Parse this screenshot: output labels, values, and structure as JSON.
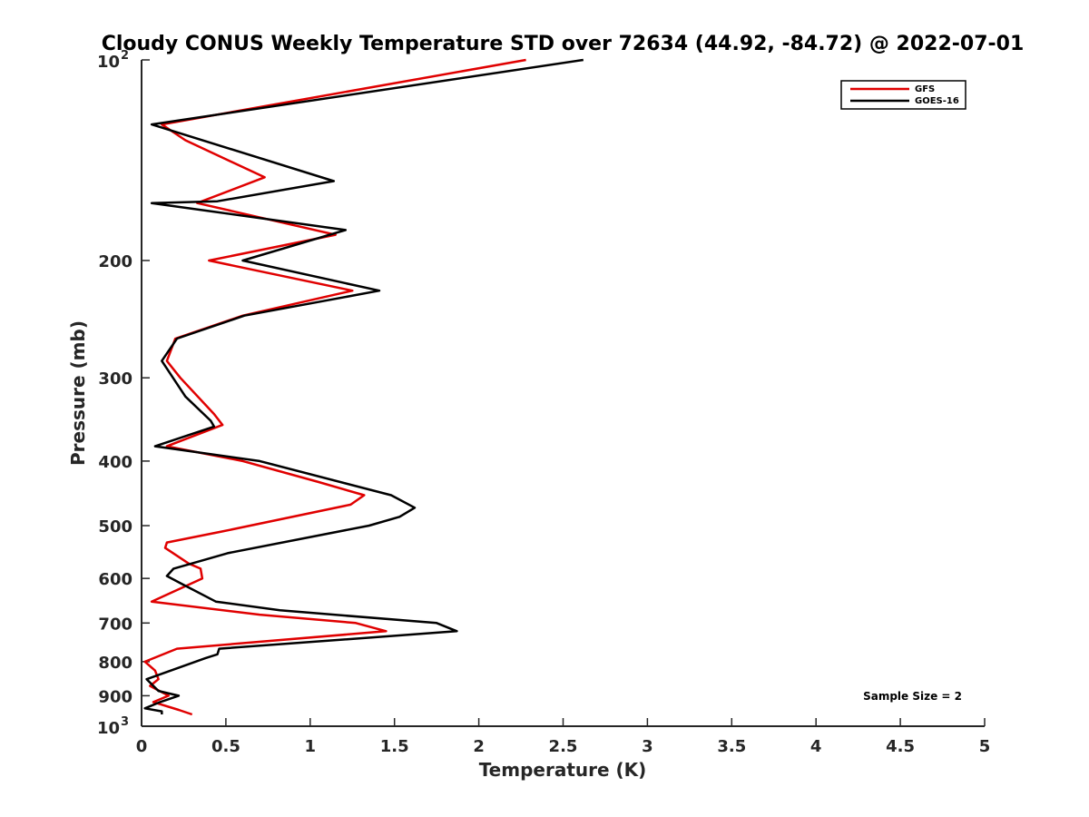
{
  "chart_data": {
    "type": "line",
    "title": "Cloudy CONUS Weekly Temperature STD over 72634 (44.92, -84.72) @ 2022-07-01",
    "xlabel": "Temperature (K)",
    "ylabel": "Pressure (mb)",
    "xlim": [
      0,
      5
    ],
    "ylim": [
      100,
      1000
    ],
    "y_scale": "log",
    "y_reversed": true,
    "grid": false,
    "legend_position": "top-right",
    "x_ticks": [
      0,
      0.5,
      1,
      1.5,
      2,
      2.5,
      3,
      3.5,
      4,
      4.5,
      5
    ],
    "x_tick_labels": [
      "0",
      "0.5",
      "1",
      "1.5",
      "2",
      "2.5",
      "3",
      "3.5",
      "4",
      "4.5",
      "5"
    ],
    "y_ticks": [
      100,
      200,
      300,
      400,
      500,
      600,
      700,
      800,
      900,
      1000
    ],
    "y_tick_labels": [
      {
        "base": "10",
        "exp": "2"
      },
      {
        "base": "200",
        "exp": ""
      },
      {
        "base": "300",
        "exp": ""
      },
      {
        "base": "400",
        "exp": ""
      },
      {
        "base": "500",
        "exp": ""
      },
      {
        "base": "600",
        "exp": ""
      },
      {
        "base": "700",
        "exp": ""
      },
      {
        "base": "800",
        "exp": ""
      },
      {
        "base": "900",
        "exp": ""
      },
      {
        "base": "10",
        "exp": "3"
      }
    ],
    "annotation": "Sample Size = 2",
    "series": [
      {
        "name": "GFS",
        "color": "#e00000",
        "points": [
          [
            2.28,
            100
          ],
          [
            0.12,
            125
          ],
          [
            0.26,
            132
          ],
          [
            0.73,
            150
          ],
          [
            0.33,
            164
          ],
          [
            1.15,
            183
          ],
          [
            0.4,
            200
          ],
          [
            1.25,
            222
          ],
          [
            0.6,
            242
          ],
          [
            0.2,
            262
          ],
          [
            0.15,
            283
          ],
          [
            0.23,
            300
          ],
          [
            0.43,
            340
          ],
          [
            0.48,
            353
          ],
          [
            0.15,
            380
          ],
          [
            0.6,
            400
          ],
          [
            1.05,
            430
          ],
          [
            1.32,
            450
          ],
          [
            1.24,
            465
          ],
          [
            0.48,
            510
          ],
          [
            0.15,
            530
          ],
          [
            0.14,
            540
          ],
          [
            0.28,
            570
          ],
          [
            0.35,
            580
          ],
          [
            0.36,
            600
          ],
          [
            0.06,
            650
          ],
          [
            0.7,
            680
          ],
          [
            1.27,
            700
          ],
          [
            1.45,
            720
          ],
          [
            0.21,
            765
          ],
          [
            0.02,
            800
          ],
          [
            0.08,
            825
          ],
          [
            0.1,
            850
          ],
          [
            0.05,
            870
          ],
          [
            0.16,
            900
          ],
          [
            0.07,
            920
          ],
          [
            0.22,
            945
          ],
          [
            0.3,
            960
          ]
        ]
      },
      {
        "name": "GOES-16",
        "color": "#000000",
        "points": [
          [
            2.62,
            100
          ],
          [
            0.06,
            125
          ],
          [
            1.14,
            152
          ],
          [
            0.45,
            163
          ],
          [
            0.06,
            164
          ],
          [
            1.21,
            180
          ],
          [
            0.6,
            200
          ],
          [
            1.41,
            222
          ],
          [
            0.61,
            242
          ],
          [
            0.21,
            262
          ],
          [
            0.12,
            283
          ],
          [
            0.26,
            320
          ],
          [
            0.41,
            348
          ],
          [
            0.43,
            355
          ],
          [
            0.08,
            380
          ],
          [
            0.7,
            400
          ],
          [
            1.48,
            450
          ],
          [
            1.62,
            470
          ],
          [
            1.53,
            485
          ],
          [
            1.35,
            500
          ],
          [
            0.51,
            550
          ],
          [
            0.19,
            580
          ],
          [
            0.15,
            595
          ],
          [
            0.23,
            610
          ],
          [
            0.44,
            650
          ],
          [
            0.82,
            670
          ],
          [
            1.75,
            700
          ],
          [
            1.87,
            720
          ],
          [
            0.46,
            765
          ],
          [
            0.45,
            780
          ],
          [
            0.38,
            790
          ],
          [
            0.03,
            850
          ],
          [
            0.1,
            885
          ],
          [
            0.22,
            900
          ],
          [
            0.11,
            920
          ],
          [
            0.02,
            940
          ],
          [
            0.12,
            950
          ],
          [
            0.12,
            960
          ]
        ]
      }
    ]
  }
}
